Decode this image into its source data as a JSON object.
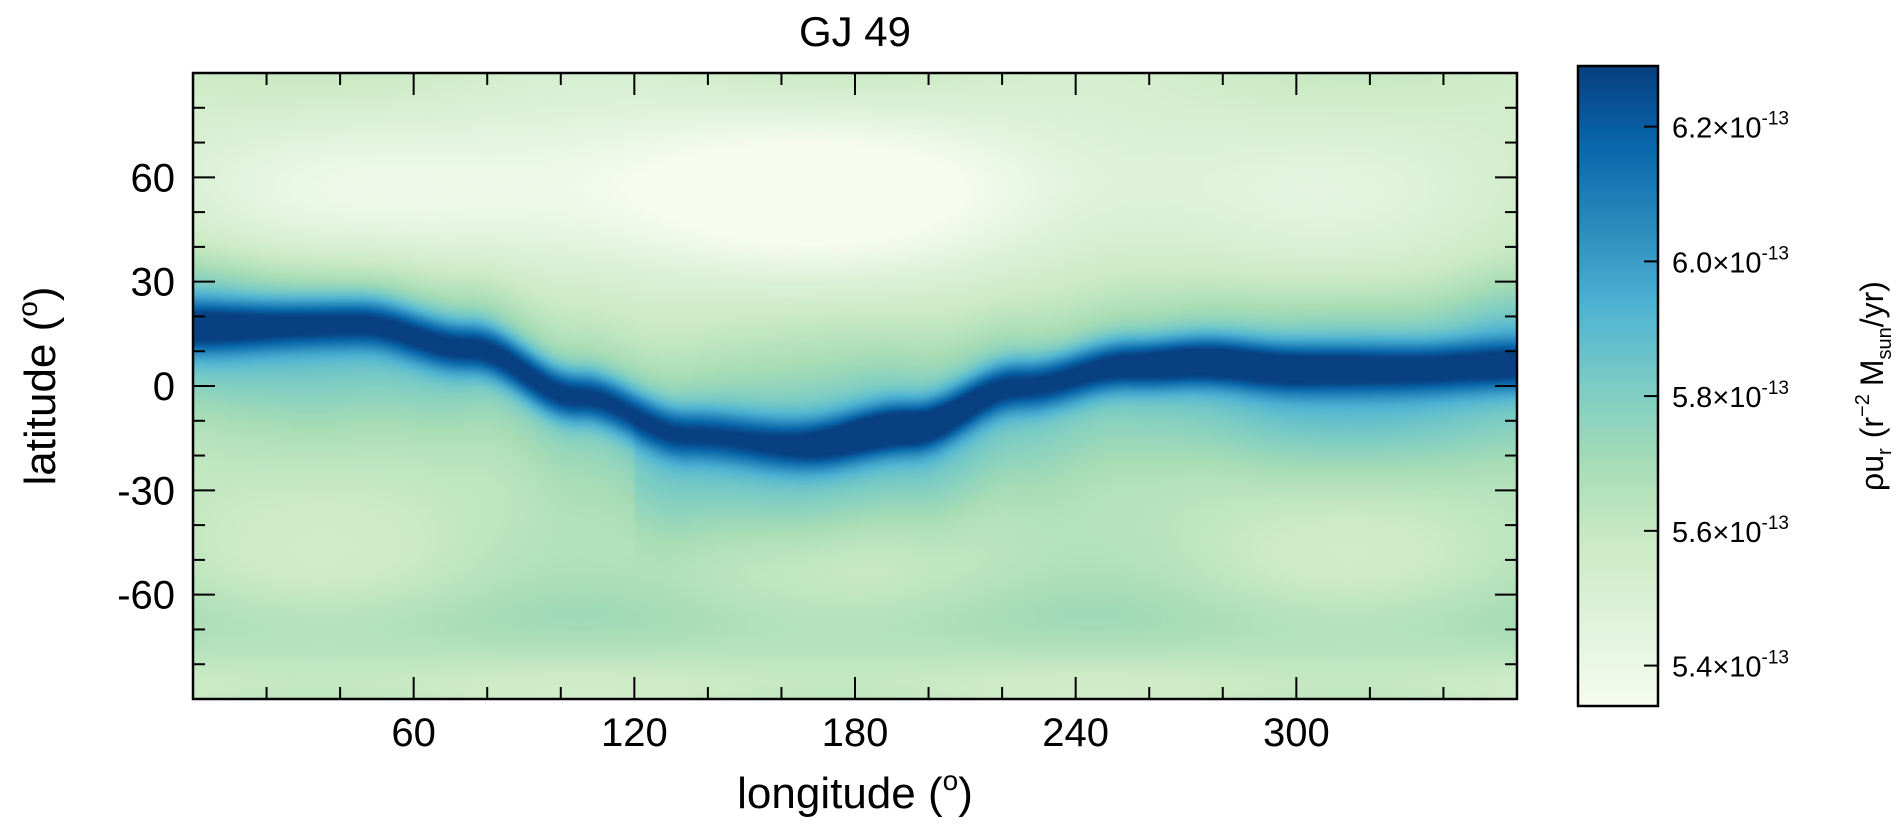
{
  "chart_data": {
    "type": "heatmap",
    "title": "GJ 49",
    "xlabel": "longitude",
    "xlabel_unit": "o",
    "ylabel": "latitude",
    "ylabel_unit": "o",
    "xlim": [
      0,
      360
    ],
    "ylim": [
      -90,
      90
    ],
    "xticks": [
      60,
      120,
      180,
      240,
      300
    ],
    "yticks": [
      60,
      30,
      0,
      -30,
      -60
    ],
    "xtick_labels": [
      "60",
      "120",
      "180",
      "240",
      "300"
    ],
    "ytick_labels": [
      "60",
      "30",
      "0",
      "-30",
      "-60"
    ],
    "colorbar": {
      "label_symbol": "ρu",
      "label_sub": "r",
      "label_units": "(r",
      "label_exp": "−2",
      "label_m": "M",
      "label_msub": "sun",
      "label_tail": "/yr)",
      "range": [
        5.34e-13,
        6.29e-13
      ],
      "ticks": [
        6.2e-13,
        6e-13,
        5.8e-13,
        5.6e-13,
        5.4e-13
      ],
      "tick_mantissas": [
        "6.2",
        "6.0",
        "5.8",
        "5.6",
        "5.4"
      ],
      "tick_times": "×10",
      "tick_exponent": "-13",
      "colormap": [
        "#f7fcf0",
        "#e0f3db",
        "#ccebc5",
        "#a8ddb5",
        "#7bccc4",
        "#4eb3d3",
        "#2b8cbe",
        "#0868ac",
        "#084081"
      ]
    },
    "features": {
      "ridge_centerline_deg": [
        [
          0,
          17
        ],
        [
          45,
          18
        ],
        [
          75,
          11
        ],
        [
          105,
          -3
        ],
        [
          135,
          -14
        ],
        [
          165,
          -17
        ],
        [
          195,
          -12
        ],
        [
          225,
          0
        ],
        [
          255,
          6
        ],
        [
          275,
          7
        ],
        [
          300,
          5
        ],
        [
          330,
          5
        ],
        [
          360,
          6
        ]
      ],
      "ridge_peak_value": 6.29e-13,
      "background_value": 5.6e-13,
      "north_cap_min_value": 5.36e-13,
      "south_band_value": 5.68e-13
    }
  }
}
